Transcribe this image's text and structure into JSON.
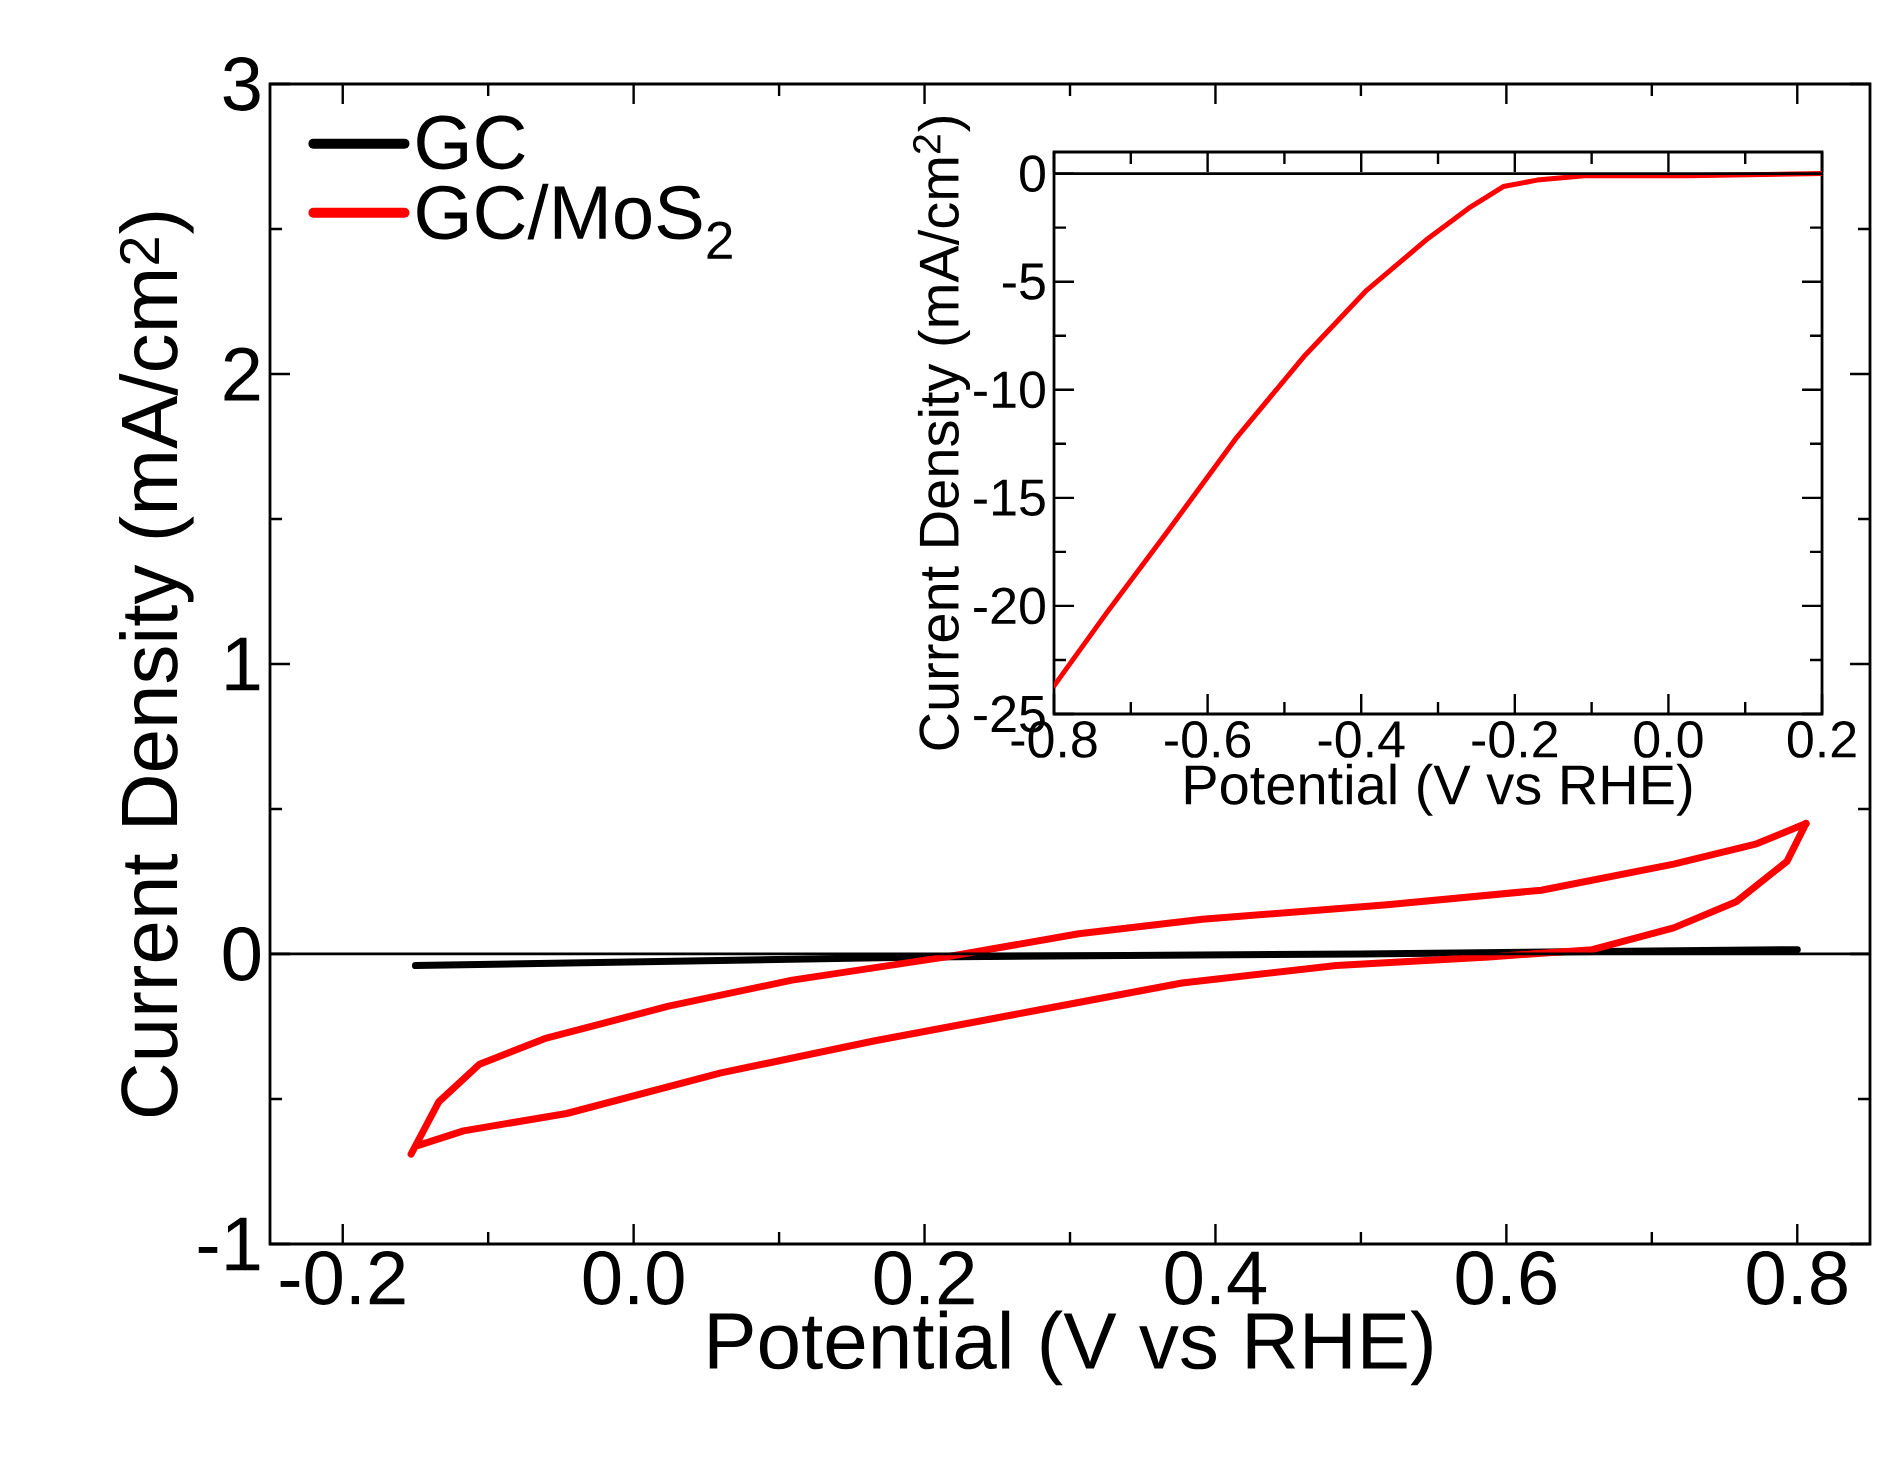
{
  "chart_data": [
    {
      "type": "line",
      "xlabel": "Potential (V vs RHE)",
      "ylabel": "Current Density (mA/cm$^{2}$)",
      "xlim": [
        -0.25,
        0.85
      ],
      "ylim": [
        -1,
        3
      ],
      "xticks": [
        -0.2,
        {
          "value": 0,
          "label": "0.0"
        },
        0.2,
        0.4,
        0.6,
        0.8
      ],
      "yticks": [
        -1,
        0,
        1,
        2,
        3
      ],
      "legend": "top left",
      "ref_lines": [
        {
          "axis": "y",
          "value": 0,
          "color": "#000000"
        }
      ],
      "series": [
        {
          "name": "GC",
          "color": "#000000",
          "x": [
            -0.15,
            0.2,
            0.5,
            0.8
          ],
          "values": [
            -0.04,
            -0.01,
            0.0,
            0.015
          ]
        },
        {
          "name": "GC/MoS$_{2}$",
          "color": "#ff0000",
          "x": [
            -0.153,
            -0.134,
            -0.106,
            -0.06,
            0.024,
            0.109,
            0.215,
            0.306,
            0.391,
            0.518,
            0.624,
            0.715,
            0.772,
            0.806
          ],
          "values": [
            -0.69,
            -0.51,
            -0.38,
            -0.29,
            -0.18,
            -0.09,
            -0.01,
            0.07,
            0.12,
            0.17,
            0.22,
            0.31,
            0.38,
            0.45
          ]
        },
        {
          "color": "#ff0000",
          "x": [
            0.806,
            0.793,
            0.758,
            0.715,
            0.659,
            0.588,
            0.483,
            0.377,
            0.271,
            0.165,
            0.06,
            -0.046,
            -0.117,
            -0.148
          ],
          "values": [
            0.45,
            0.32,
            0.18,
            0.09,
            0.015,
            -0.01,
            -0.04,
            -0.1,
            -0.2,
            -0.3,
            -0.41,
            -0.55,
            -0.61,
            -0.66
          ]
        }
      ]
    },
    {
      "type": "line",
      "xlabel": "Potential (V vs RHE)",
      "ylabel": "Current Density (mA/cm$^{2}$)",
      "xlim": [
        -0.8,
        0.2
      ],
      "ylim": [
        -25,
        1
      ],
      "xticks": [
        -0.8,
        -0.6,
        -0.4,
        -0.2,
        {
          "value": 0,
          "label": "0.0"
        },
        0.2
      ],
      "yticks": [
        -25,
        -20,
        -15,
        -10,
        -5,
        0
      ],
      "ref_lines": [
        {
          "axis": "y",
          "value": 0,
          "color": "#000000"
        }
      ],
      "series": [
        {
          "color": "#ff0000",
          "x": [
            -0.8,
            -0.731,
            -0.651,
            -0.562,
            -0.473,
            -0.393,
            -0.313,
            -0.26,
            -0.215,
            -0.171,
            -0.109,
            0.024,
            0.2
          ],
          "values": [
            -23.7,
            -20.3,
            -16.5,
            -12.2,
            -8.4,
            -5.4,
            -3.0,
            -1.6,
            -0.6,
            -0.3,
            -0.1,
            -0.1,
            0.0
          ]
        }
      ]
    }
  ]
}
